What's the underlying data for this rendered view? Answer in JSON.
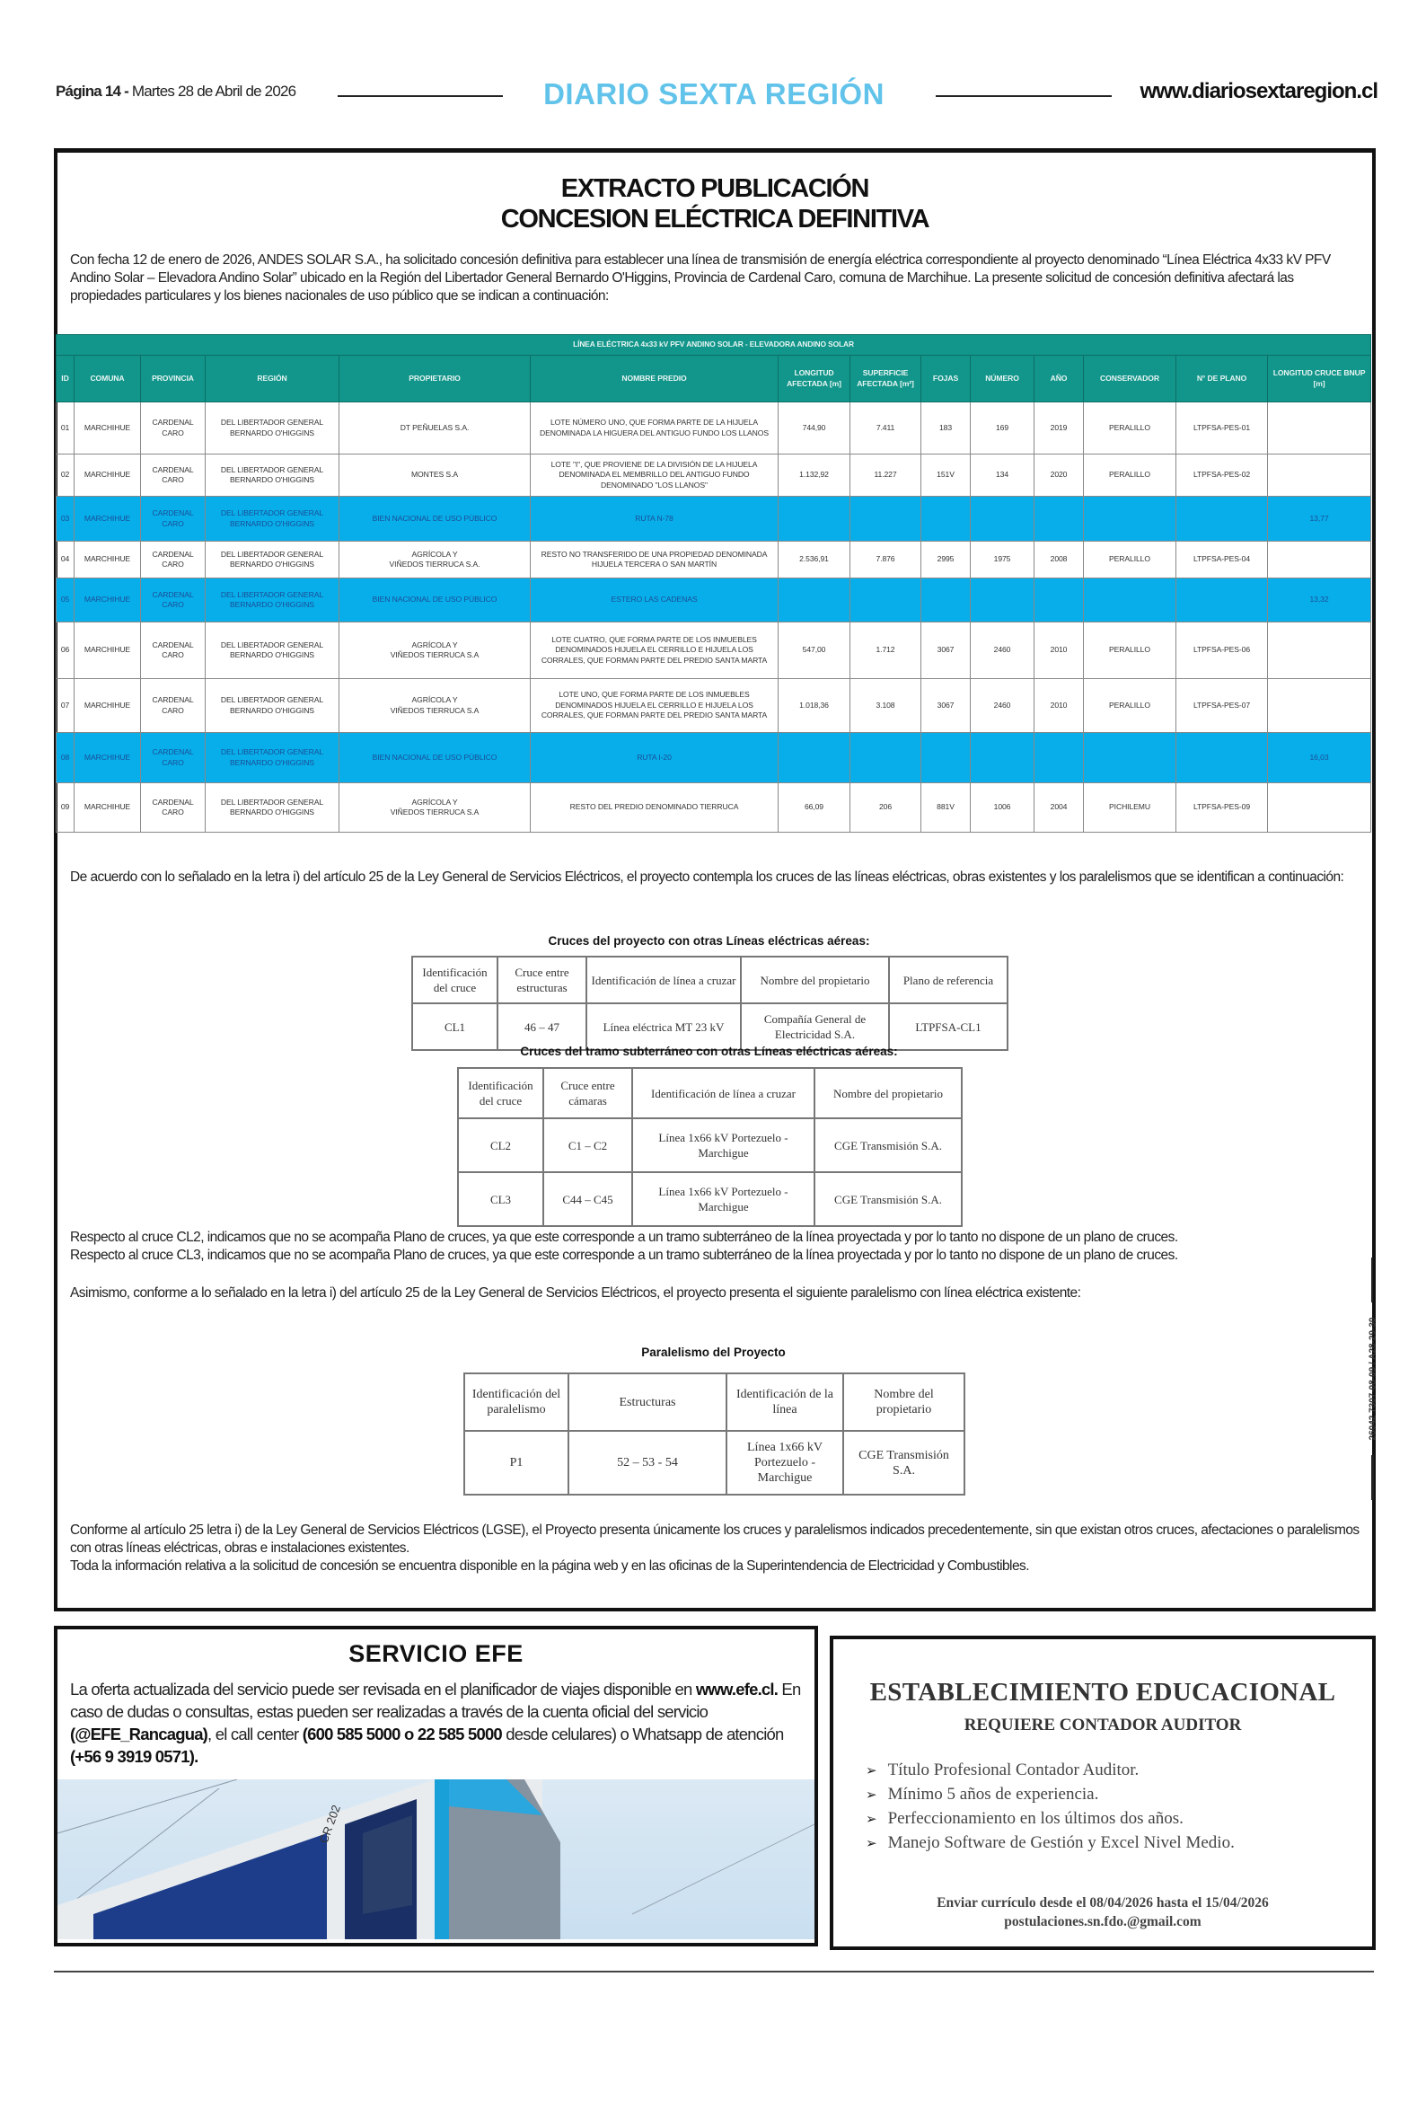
{
  "masthead": {
    "page_label": "Página 14 -",
    "date": "Martes 28 de Abril de 2026",
    "title": "DIARIO SEXTA REGIÓN",
    "url": "www.diariosextaregion.cl",
    "title_color": "#62c3ea"
  },
  "notice": {
    "title_line1": "EXTRACTO PUBLICACIÓN",
    "title_line2": "CONCESION ELÉCTRICA DEFINITIVA",
    "intro": "Con fecha 12 de enero de 2026, ANDES SOLAR S.A., ha solicitado concesión definitiva para establecer una línea de transmisión de energía eléctrica correspondiente al proyecto denominado “Línea Eléctrica 4x33 kV PFV Andino Solar – Elevadora Andino Solar” ubicado en la Región del Libertador General Bernardo O'Higgins, Provincia de Cardenal Caro, comuna de Marchihue. La presente solicitud de concesión definitiva afectará las propiedades particulares y los bienes nacionales de uso público que se indican a continuación:",
    "table": {
      "caption": "LÍNEA ELÉCTRICA 4x33 kV PFV ANDINO SOLAR - ELEVADORA ANDINO SOLAR",
      "header_color": "#12958a",
      "highlight_color": "#08aeea",
      "columns": [
        "ID",
        "COMUNA",
        "PROVINCIA",
        "REGIÓN",
        "PROPIETARIO",
        "NOMBRE PREDIO",
        "LONGITUD AFECTADA [m]",
        "SUPERFICIE AFECTADA [m²]",
        "FOJAS",
        "NÚMERO",
        "AÑO",
        "CONSERVADOR",
        "N° DE PLANO",
        "LONGITUD CRUCE BNUP [m]"
      ],
      "rows": [
        {
          "highlight": false,
          "cells": [
            "01",
            "MARCHIHUE",
            "CARDENAL CARO",
            "DEL LIBERTADOR GENERAL BERNARDO O'HIGGINS",
            "DT PEÑUELAS S.A.",
            "LOTE NÚMERO UNO, QUE FORMA PARTE DE LA HIJUELA DENOMINADA LA HIGUERA DEL ANTIGUO FUNDO LOS LLANOS",
            "744,90",
            "7.411",
            "183",
            "169",
            "2019",
            "PERALILLO",
            "LTPFSA-PES-01",
            ""
          ]
        },
        {
          "highlight": false,
          "cells": [
            "02",
            "MARCHIHUE",
            "CARDENAL CARO",
            "DEL LIBERTADOR GENERAL BERNARDO O'HIGGINS",
            "MONTES S.A",
            "LOTE \"I\", QUE PROVIENE DE LA DIVISIÓN DE LA HIJUELA DENOMINADA EL MEMBRILLO DEL ANTIGUO FUNDO DENOMINADO \"LOS LLANOS\"",
            "1.132,92",
            "11.227",
            "151V",
            "134",
            "2020",
            "PERALILLO",
            "LTPFSA-PES-02",
            ""
          ]
        },
        {
          "highlight": true,
          "cells": [
            "03",
            "MARCHIHUE",
            "CARDENAL CARO",
            "DEL LIBERTADOR GENERAL BERNARDO O'HIGGINS",
            "BIEN NACIONAL DE USO PÚBLICO",
            "RUTA N-78",
            "",
            "",
            "",
            "",
            "",
            "",
            "",
            "13,77"
          ]
        },
        {
          "highlight": false,
          "cells": [
            "04",
            "MARCHIHUE",
            "CARDENAL CARO",
            "DEL LIBERTADOR GENERAL BERNARDO O'HIGGINS",
            "AGRÍCOLA Y\nVIÑEDOS TIERRUCA S.A.",
            "RESTO NO TRANSFERIDO DE UNA PROPIEDAD DENOMINADA HIJUELA TERCERA O SAN MARTÍN",
            "2.536,91",
            "7.876",
            "2995",
            "1975",
            "2008",
            "PERALILLO",
            "LTPFSA-PES-04",
            ""
          ]
        },
        {
          "highlight": true,
          "cells": [
            "05",
            "MARCHIHUE",
            "CARDENAL CARO",
            "DEL LIBERTADOR GENERAL BERNARDO O'HIGGINS",
            "BIEN NACIONAL DE USO PÚBLICO",
            "ESTERO LAS CADENAS",
            "",
            "",
            "",
            "",
            "",
            "",
            "",
            "13,32"
          ]
        },
        {
          "highlight": false,
          "cells": [
            "06",
            "MARCHIHUE",
            "CARDENAL CARO",
            "DEL LIBERTADOR GENERAL BERNARDO O'HIGGINS",
            "AGRÍCOLA Y\nVIÑEDOS TIERRUCA S.A",
            "LOTE CUATRO, QUE FORMA PARTE DE LOS INMUEBLES DENOMINADOS HIJUELA EL CERRILLO E HIJUELA LOS CORRALES, QUE FORMAN PARTE DEL PREDIO SANTA MARTA",
            "547,00",
            "1.712",
            "3067",
            "2460",
            "2010",
            "PERALILLO",
            "LTPFSA-PES-06",
            ""
          ]
        },
        {
          "highlight": false,
          "cells": [
            "07",
            "MARCHIHUE",
            "CARDENAL CARO",
            "DEL LIBERTADOR GENERAL BERNARDO O'HIGGINS",
            "AGRÍCOLA Y\nVIÑEDOS TIERRUCA S.A",
            "LOTE UNO, QUE FORMA PARTE DE LOS INMUEBLES DENOMINADOS HIJUELA EL CERRILLO E HIJUELA LOS CORRALES, QUE FORMAN PARTE DEL PREDIO SANTA MARTA",
            "1.018,36",
            "3.108",
            "3067",
            "2460",
            "2010",
            "PERALILLO",
            "LTPFSA-PES-07",
            ""
          ]
        },
        {
          "highlight": true,
          "cells": [
            "08",
            "MARCHIHUE",
            "CARDENAL CARO",
            "DEL LIBERTADOR GENERAL BERNARDO O'HIGGINS",
            "BIEN NACIONAL DE USO PÚBLICO",
            "RUTA I-20",
            "",
            "",
            "",
            "",
            "",
            "",
            "",
            "16,03"
          ]
        },
        {
          "highlight": false,
          "cells": [
            "09",
            "MARCHIHUE",
            "CARDENAL CARO",
            "DEL LIBERTADOR GENERAL BERNARDO O'HIGGINS",
            "AGRÍCOLA Y\nVIÑEDOS TIERRUCA S.A",
            "RESTO DEL PREDIO DENOMINADO TIERRUCA",
            "66,09",
            "206",
            "881V",
            "1006",
            "2004",
            "PICHILEMU",
            "LTPFSA-PES-09",
            ""
          ]
        }
      ]
    },
    "crossings_intro": "De acuerdo con lo señalado en la letra i) del artículo 25 de la Ley General de Servicios Eléctricos, el proyecto contempla los cruces de las líneas eléctricas, obras existentes y los paralelismos que se identifican a continuación:",
    "aerial_crossings": {
      "title": "Cruces del proyecto con otras Líneas eléctricas aéreas:",
      "columns": [
        "Identificación del cruce",
        "Cruce entre estructuras",
        "Identificación de línea a cruzar",
        "Nombre del propietario",
        "Plano de referencia"
      ],
      "rows": [
        [
          "CL1",
          "46 – 47",
          "Línea eléctrica MT 23 kV",
          "Compañía General de Electricidad S.A.",
          "LTPFSA-CL1"
        ]
      ]
    },
    "underground_crossings": {
      "title": "Cruces del tramo subterráneo con otras Líneas eléctricas aéreas:",
      "columns": [
        "Identificación del cruce",
        "Cruce entre cámaras",
        "Identificación de línea a cruzar",
        "Nombre del propietario"
      ],
      "rows": [
        [
          "CL2",
          "C1 – C2",
          "Línea 1x66 kV Portezuelo - Marchigue",
          "CGE Transmisión S.A."
        ],
        [
          "CL3",
          "C44 – C45",
          "Línea 1x66 kV Portezuelo - Marchigue",
          "CGE Transmisión S.A."
        ]
      ]
    },
    "note_cl2": "Respecto al cruce CL2, indicamos que no se acompaña Plano de cruces, ya que este corresponde a un tramo subterráneo de la línea proyectada y por lo tanto no dispone de un plano de cruces.",
    "note_cl3": "Respecto al cruce CL3, indicamos que no se acompaña Plano de cruces, ya que este corresponde a un tramo subterráneo de la línea proyectada y por lo tanto no dispone de un plano de cruces.",
    "parallel_intro": "Asimismo, conforme a lo señalado en la letra i) del artículo 25 de la Ley General de Servicios Eléctricos, el proyecto presenta el siguiente paralelismo con línea eléctrica existente:",
    "parallelism": {
      "title": "Paralelismo del Proyecto",
      "columns": [
        "Identificación del paralelismo",
        "Estructuras",
        "Identificación de la línea",
        "Nombre del propietario"
      ],
      "rows": [
        [
          "P1",
          "52 – 53 - 54",
          "Línea 1x66 kV Portezuelo - Marchigue",
          "CGE Transmisión S.A."
        ]
      ]
    },
    "closing_1": "Conforme al artículo 25 letra i) de la Ley General de Servicios Eléctricos (LGSE), el Proyecto presenta únicamente los cruces y paralelismos indicados precedentemente, sin que existan otros cruces, afectaciones o paralelismos con otras líneas eléctricas, obras e instalaciones existentes.",
    "closing_2": "Toda la información relativa a la solicitud de concesión se encuentra disponible en la página web y en las oficinas de la Superintendencia de Electricidad y Combustibles.",
    "side_code": "26042 7307-08-09 / A28-29-30"
  },
  "efe_ad": {
    "title": "SERVICIO EFE",
    "text_1": "La oferta actualizada del servicio puede ser revisada en el planificador de viajes disponible en ",
    "website": "www.efe.cl.",
    "text_2": " En caso de dudas o consultas, estas pueden ser realizadas a través de la cuenta oficial del servicio ",
    "account": "(@EFE_Rancagua)",
    "text_3": ", el call center ",
    "phones": "(600 585 5000 o 22 585 5000",
    "text_4": " desde celulares) o Whatsapp de atención ",
    "whatsapp": "(+56 9 3919 0571).",
    "train_label": "CR 202"
  },
  "edu_ad": {
    "title": "ESTABLECIMIENTO EDUCACIONAL",
    "subtitle": "REQUIERE CONTADOR AUDITOR",
    "requirements": [
      "Título Profesional Contador Auditor.",
      "Mínimo 5 años de experiencia.",
      "Perfeccionamiento en los últimos dos años.",
      "Manejo Software de Gestión y Excel Nivel Medio."
    ],
    "footer_line1": "Enviar currículo desde el 08/04/2026 hasta el 15/04/2026",
    "footer_line2": "postulaciones.sn.fdo.@gmail.com"
  }
}
